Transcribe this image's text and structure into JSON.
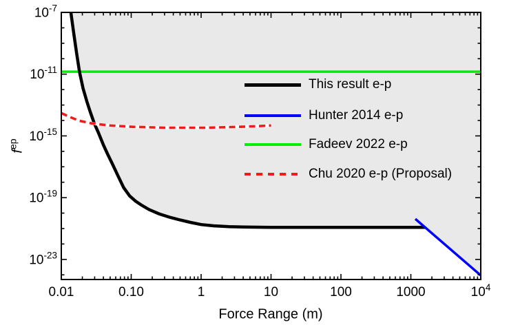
{
  "chart_data": {
    "type": "line",
    "title": "",
    "xlabel": "Force Range (m)",
    "ylabel_base": "f",
    "ylabel_sup": "ep",
    "x_scale": "log",
    "y_scale": "log",
    "xlim": [
      0.01,
      10000
    ],
    "ylim": [
      5e-25,
      1e-07
    ],
    "grid": false,
    "legend_position": "inside-upper-right",
    "excluded_region_color": "#e9e9e9",
    "axis_color": "#000000",
    "x_ticks": [
      {
        "text": "0.01",
        "v": 0.01
      },
      {
        "text": "0.10",
        "v": 0.1
      },
      {
        "text": "1",
        "v": 1
      },
      {
        "text": "10",
        "v": 10
      },
      {
        "text": "100",
        "v": 100
      },
      {
        "text": "1000",
        "v": 1000
      },
      {
        "text": "10",
        "sup": "4",
        "v": 10000
      }
    ],
    "y_ticks": [
      {
        "base": "10",
        "sup": "-7",
        "v": 1e-07
      },
      {
        "base": "10",
        "sup": "-11",
        "v": 1e-11
      },
      {
        "base": "10",
        "sup": "-15",
        "v": 1e-15
      },
      {
        "base": "10",
        "sup": "-19",
        "v": 1e-19
      },
      {
        "base": "10",
        "sup": "-23",
        "v": 1e-23
      }
    ],
    "series": [
      {
        "name": "This result e-p",
        "color": "#000000",
        "style": "solid",
        "width": 4.5,
        "bounds_excluded_region": true,
        "points": [
          [
            0.0137,
            1e-07
          ],
          [
            0.015,
            5e-09
          ],
          [
            0.0165,
            2.5e-10
          ],
          [
            0.0182,
            1.4e-11
          ],
          [
            0.0205,
            1.2e-12
          ],
          [
            0.0232,
            1.7e-13
          ],
          [
            0.026,
            3.5e-14
          ],
          [
            0.0297,
            6.3e-15
          ],
          [
            0.034,
            1.6e-15
          ],
          [
            0.04,
            2.6e-16
          ],
          [
            0.046,
            6.5e-17
          ],
          [
            0.0536,
            1.6e-17
          ],
          [
            0.065,
            2.5e-18
          ],
          [
            0.078,
            4.5e-19
          ],
          [
            0.095,
            1.3e-19
          ],
          [
            0.115,
            6e-20
          ],
          [
            0.14,
            3.3e-20
          ],
          [
            0.18,
            1.7e-20
          ],
          [
            0.25,
            9e-21
          ],
          [
            0.35,
            5.5e-21
          ],
          [
            0.5,
            3.6e-21
          ],
          [
            0.7,
            2.5e-21
          ],
          [
            1,
            1.8e-21
          ],
          [
            1.5,
            1.5e-21
          ],
          [
            2.5,
            1.32e-21
          ],
          [
            4,
            1.25e-21
          ],
          [
            10,
            1.2e-21
          ],
          [
            100,
            1.2e-21
          ],
          [
            1596,
            1.2e-21
          ]
        ]
      },
      {
        "name": "Hunter 2014 e-p",
        "color": "#0000ff",
        "style": "solid",
        "width": 3.5,
        "points": [
          [
            1160,
            4.2e-21
          ],
          [
            10000,
            9.2e-25
          ]
        ]
      },
      {
        "name": "Fadeev 2022 e-p",
        "color": "#00ee00",
        "style": "solid",
        "width": 3.5,
        "points": [
          [
            0.01,
            1.45e-11
          ],
          [
            10000,
            1.45e-11
          ]
        ]
      },
      {
        "name": "Chu 2020 e-p (Proposal)",
        "color": "#ee1c1c",
        "style": "dashed",
        "width": 3.6,
        "underlay_color": "#ffffff",
        "points": [
          [
            0.01,
            3e-14
          ],
          [
            0.0128,
            1.8e-14
          ],
          [
            0.018,
            9.6e-15
          ],
          [
            0.028,
            6.3e-15
          ],
          [
            0.05,
            4.7e-15
          ],
          [
            0.105,
            3.9e-15
          ],
          [
            0.3,
            3.4e-15
          ],
          [
            1.2,
            3.4e-15
          ],
          [
            3,
            3.8e-15
          ],
          [
            6,
            4.2e-15
          ],
          [
            10,
            4.7e-15
          ]
        ]
      }
    ]
  }
}
